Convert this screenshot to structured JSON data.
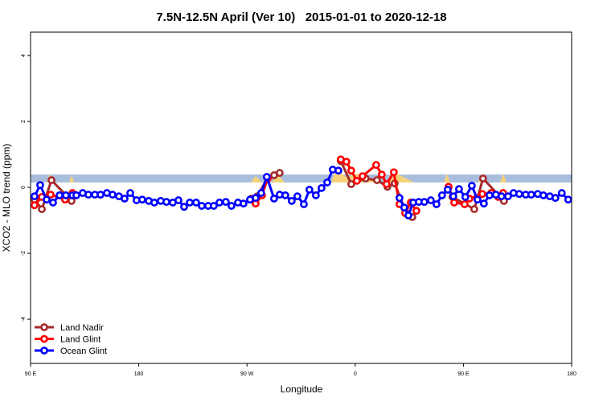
{
  "chart_data": {
    "type": "line",
    "title": "7.5N-12.5N April (Ver 10)   2015-01-01 to 2020-12-18",
    "xlabel": "Longitude",
    "ylabel": "XCO2 - MLO trend (ppm)",
    "xlim": [
      90,
      540
    ],
    "ylim": [
      -5.34,
      4.71
    ],
    "xticks": [
      {
        "value": 90,
        "label": "90 E"
      },
      {
        "value": 180,
        "label": "180"
      },
      {
        "value": 270,
        "label": "90 W"
      },
      {
        "value": 360,
        "label": "0"
      },
      {
        "value": 450,
        "label": "90 E"
      },
      {
        "value": 540,
        "label": "180"
      }
    ],
    "yticks": [
      -4,
      -2,
      0,
      2,
      4
    ],
    "legend": "bottom-left",
    "series": [
      {
        "name": "Land Nadir",
        "color": "#a52a2a",
        "x": [
          93.3,
          99.4,
          107.4,
          124.1,
          null,
          273.8,
          278.5,
          287.2,
          292.5,
          297.2,
          null,
          348.0,
          356.7,
          368.7,
          378.1,
          386.8,
          392.8,
          402.8,
          407.5,
          null,
          437.6,
          440.9,
          459.0,
          466.3,
          483.7
        ],
        "values": [
          -0.37,
          -0.66,
          0.22,
          -0.41,
          null,
          -0.34,
          -0.27,
          0.29,
          0.37,
          0.44,
          null,
          0.8,
          0.1,
          0.27,
          0.22,
          0.02,
          0.12,
          -0.8,
          -0.9,
          null,
          0.0,
          -0.29,
          -0.66,
          0.27,
          -0.41
        ]
      },
      {
        "name": "Land Glint",
        "color": "#ff0000",
        "x": [
          93.3,
          99.4,
          106.7,
          118.7,
          124.8,
          null,
          277.2,
          282.5,
          287.2,
          null,
          348.0,
          352.7,
          356.7,
          361.4,
          366.1,
          377.4,
          382.1,
          386.1,
          392.1,
          396.8,
          401.5,
          406.2,
          410.9,
          null,
          437.6,
          442.3,
          451.0,
          455.0,
          465.7,
          473.0,
          479.0,
          483.0
        ],
        "values": [
          -0.54,
          -0.29,
          -0.22,
          -0.37,
          -0.17,
          null,
          -0.49,
          -0.24,
          0.27,
          null,
          0.85,
          0.78,
          0.51,
          0.2,
          0.34,
          0.68,
          0.39,
          0.1,
          0.46,
          -0.51,
          -0.78,
          -0.46,
          -0.71,
          null,
          0.02,
          -0.46,
          -0.51,
          -0.34,
          -0.2,
          -0.17,
          -0.29,
          -0.17
        ]
      },
      {
        "name": "Ocean Glint",
        "color": "#0000ff",
        "x": [
          93.3,
          98.0,
          103.4,
          108.7,
          114.1,
          119.4,
          124.8,
          128.1,
          133.4,
          138.1,
          143.5,
          148.2,
          153.5,
          158.2,
          163.5,
          168.2,
          172.9,
          178.2,
          182.9,
          188.3,
          192.9,
          198.3,
          203.0,
          208.3,
          213.0,
          217.7,
          222.4,
          227.7,
          232.4,
          237.7,
          242.4,
          247.1,
          252.4,
          257.1,
          262.5,
          267.1,
          272.5,
          277.2,
          281.8,
          286.5,
          292.5,
          297.2,
          301.9,
          307.2,
          311.9,
          317.3,
          321.9,
          327.3,
          332.0,
          336.7,
          341.3,
          346.0,
          null,
          396.8,
          400.8,
          404.2,
          408.2,
          412.9,
          417.5,
          422.9,
          427.6,
          432.2,
          436.9,
          441.6,
          446.3,
          451.6,
          457.0,
          461.7,
          467.0,
          471.7,
          477.0,
          481.7,
          487.1,
          491.7,
          496.4,
          501.8,
          506.4,
          511.8,
          516.5,
          521.8,
          526.5,
          531.8,
          537.2
        ],
        "values": [
          -0.27,
          0.07,
          -0.37,
          -0.46,
          -0.24,
          -0.24,
          -0.24,
          -0.24,
          -0.17,
          -0.22,
          -0.22,
          -0.22,
          -0.17,
          -0.22,
          -0.27,
          -0.34,
          -0.17,
          -0.39,
          -0.37,
          -0.41,
          -0.46,
          -0.41,
          -0.44,
          -0.46,
          -0.39,
          -0.59,
          -0.46,
          -0.46,
          -0.56,
          -0.56,
          -0.56,
          -0.46,
          -0.44,
          -0.56,
          -0.46,
          -0.49,
          -0.37,
          -0.32,
          -0.17,
          0.32,
          -0.34,
          -0.22,
          -0.24,
          -0.41,
          -0.27,
          -0.51,
          -0.07,
          -0.24,
          -0.02,
          0.15,
          0.54,
          0.51,
          null,
          -0.32,
          -0.61,
          -0.85,
          -0.46,
          -0.44,
          -0.44,
          -0.39,
          -0.51,
          -0.24,
          -0.07,
          -0.27,
          -0.05,
          -0.29,
          0.05,
          -0.37,
          -0.49,
          -0.24,
          -0.22,
          -0.27,
          -0.27,
          -0.17,
          -0.2,
          -0.22,
          -0.22,
          -0.2,
          -0.24,
          -0.27,
          -0.32,
          -0.17,
          -0.37
        ]
      }
    ]
  }
}
